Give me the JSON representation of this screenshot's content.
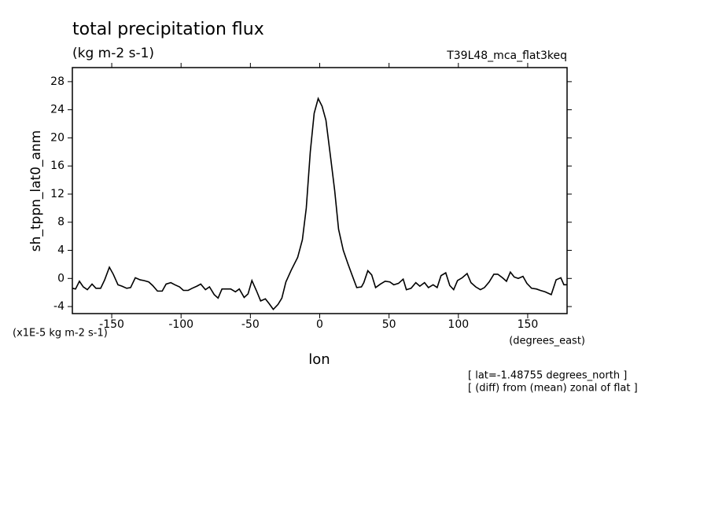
{
  "chart_data": {
    "type": "line",
    "title": "total precipitation flux",
    "subtitle": "(kg m-2 s-1)",
    "dataset": "T39L48_mca_flat3keq",
    "y_label": "sh_tppn_lat0_anm",
    "y_units": "(x1E-5 kg m-2 s-1)",
    "x_label": "lon",
    "x_units": "(degrees_east)",
    "annotations": [
      "[ lat=-1.48755 degrees_north ]",
      "[ (diff) from (mean) zonal of flat ]"
    ],
    "xlim": [
      -178.4,
      178.4
    ],
    "ylim": [
      -5,
      30
    ],
    "xticks": [
      -150,
      -100,
      -50,
      0,
      50,
      100,
      150
    ],
    "yticks": [
      -4,
      0,
      4,
      8,
      12,
      16,
      20,
      24,
      28
    ],
    "x": [
      -178.4,
      -176.1,
      -173.3,
      -170.5,
      -167.6,
      -164.2,
      -161.4,
      -158.0,
      -155.1,
      -151.7,
      -148.9,
      -145.5,
      -142.6,
      -139.2,
      -136.4,
      -133.0,
      -129.5,
      -126.7,
      -123.3,
      -120.5,
      -117.0,
      -113.6,
      -110.8,
      -107.4,
      -104.5,
      -101.1,
      -98.3,
      -94.9,
      -92.0,
      -88.6,
      -85.8,
      -82.4,
      -79.5,
      -76.1,
      -73.3,
      -70.5,
      -67.0,
      -64.2,
      -60.8,
      -58.0,
      -54.5,
      -51.7,
      -48.9,
      -45.5,
      -42.6,
      -39.2,
      -36.4,
      -33.5,
      -30.1,
      -27.3,
      -24.4,
      -20.5,
      -15.9,
      -12.5,
      -9.7,
      -6.8,
      -4.0,
      -1.1,
      1.7,
      4.5,
      8.0,
      10.8,
      13.6,
      17.0,
      20.5,
      23.3,
      26.7,
      30.1,
      31.8,
      34.7,
      37.5,
      40.3,
      43.8,
      47.2,
      50.6,
      53.4,
      56.8,
      60.2,
      62.5,
      65.9,
      69.3,
      72.2,
      75.6,
      78.4,
      81.8,
      84.7,
      87.5,
      90.9,
      93.8,
      96.6,
      99.4,
      102.8,
      106.3,
      109.1,
      112.5,
      115.9,
      118.8,
      122.2,
      125.6,
      128.4,
      131.8,
      134.7,
      137.5,
      140.3,
      143.2,
      146.6,
      149.4,
      152.8,
      156.3,
      159.1,
      162.5,
      167.0,
      170.5,
      173.9,
      176.1,
      178.4
    ],
    "series": [
      {
        "color": "#000000",
        "values": [
          -1.4,
          -1.5,
          -0.4,
          -1.2,
          -1.6,
          -0.8,
          -1.4,
          -1.4,
          -0.2,
          1.6,
          0.6,
          -0.9,
          -1.1,
          -1.4,
          -1.3,
          0.1,
          -0.2,
          -0.3,
          -0.5,
          -1.0,
          -1.8,
          -1.8,
          -0.8,
          -0.6,
          -0.9,
          -1.2,
          -1.7,
          -1.7,
          -1.4,
          -1.1,
          -0.8,
          -1.6,
          -1.2,
          -2.3,
          -2.8,
          -1.5,
          -1.5,
          -1.5,
          -1.9,
          -1.5,
          -2.7,
          -2.2,
          -0.3,
          -1.8,
          -3.2,
          -2.9,
          -3.6,
          -4.4,
          -3.7,
          -2.8,
          -0.5,
          1.2,
          3.0,
          5.5,
          10,
          18,
          23.5,
          25.6,
          24.5,
          22.5,
          17,
          12.5,
          7,
          4,
          2,
          0.5,
          -1.3,
          -1.2,
          -0.6,
          1.1,
          0.5,
          -1.3,
          -0.8,
          -0.4,
          -0.5,
          -0.9,
          -0.7,
          -0.1,
          -1.6,
          -1.4,
          -0.6,
          -1.1,
          -0.6,
          -1.3,
          -0.9,
          -1.3,
          0.4,
          0.8,
          -1.0,
          -1.6,
          -0.3,
          0.1,
          0.7,
          -0.6,
          -1.2,
          -1.6,
          -1.3,
          -0.5,
          0.6,
          0.6,
          0.1,
          -0.4,
          0.9,
          0.2,
          0.0,
          0.3,
          -0.7,
          -1.4,
          -1.5,
          -1.7,
          -1.9,
          -2.3,
          -0.2,
          0.1,
          -0.9,
          -0.9
        ]
      }
    ]
  }
}
